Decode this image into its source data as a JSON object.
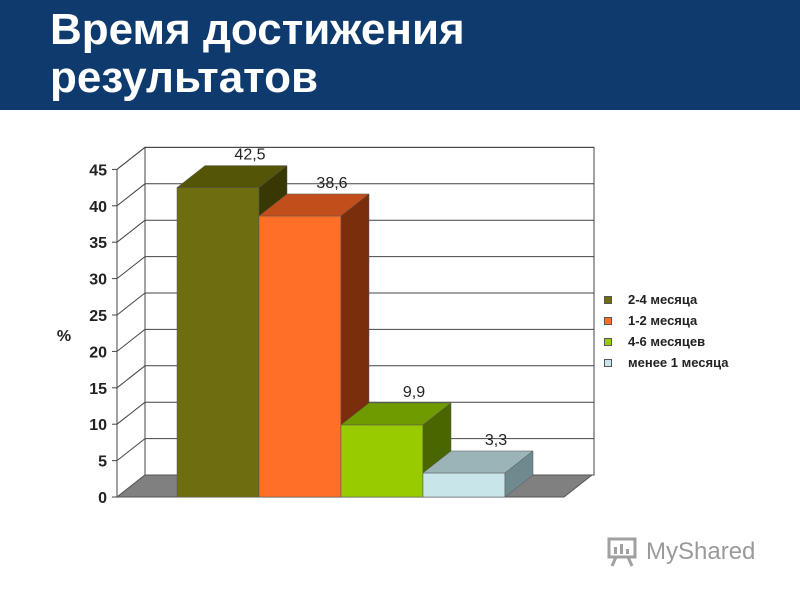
{
  "slide": {
    "title": "Время достижения\nрезультатов"
  },
  "watermark": {
    "text": "MyShared",
    "icon": "myshared-logo-icon"
  },
  "chart_data": {
    "type": "bar",
    "style": "3d",
    "title": "",
    "xlabel": "",
    "ylabel": "%",
    "ylim": [
      0,
      45
    ],
    "yticks": [
      0,
      5,
      10,
      15,
      20,
      25,
      30,
      35,
      40,
      45
    ],
    "grid": true,
    "legend_position": "right",
    "categories": [
      "2-4 месяца",
      "1-2 месяца",
      "4-6 месяцев",
      "менее 1 месяца"
    ],
    "values": [
      42.5,
      38.6,
      9.9,
      3.3
    ],
    "value_labels": [
      "42,5",
      "38,6",
      "9,9",
      "3,3"
    ],
    "colors": {
      "front": [
        "#6e6e10",
        "#ff6f28",
        "#99cc00",
        "#c8e6ea"
      ],
      "top": [
        "#555508",
        "#c24e1c",
        "#6f9a00",
        "#9ab4b8"
      ],
      "side": [
        "#383805",
        "#7a2e0c",
        "#4a6600",
        "#6f8a8e"
      ]
    }
  }
}
